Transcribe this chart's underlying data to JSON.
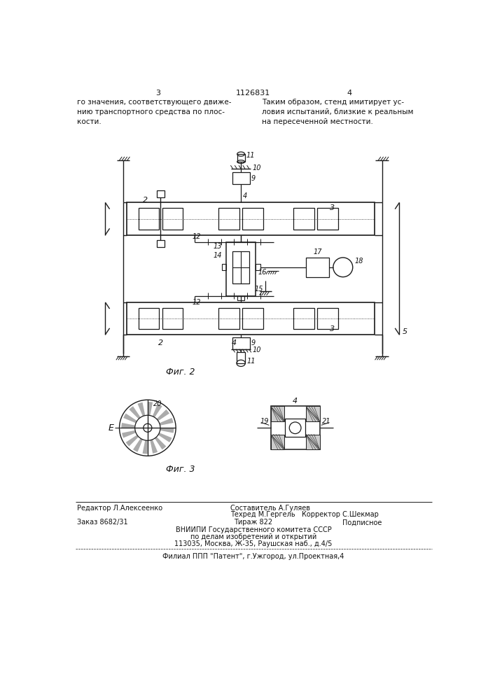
{
  "page_number_left": "3",
  "page_number_center": "1126831",
  "page_number_right": "4",
  "text_left": "го значения, соответствующего движе-\nнию транспортного средства по плос-\nкости.",
  "text_right": "Таким образом, стенд имитирует ус-\nловия испытаний, близкие к реальным\nна пересеченной местности.",
  "fig2_caption": "Фиг. 2",
  "fig3_caption": "Фиг. 3",
  "footer_line1": "Редактор Л.Алексеенко",
  "footer_col2_1": "Составитель А.Гуляев",
  "footer_col2_2": "Техред М.Гергель   Корректор С.Шекмар",
  "footer_order": "Заказ 8682/31",
  "footer_tirazh": "Тираж 822",
  "footer_podpisnoe": "Подписное",
  "footer_vniip1": "ВНИИПИ Государственного комитета СССР",
  "footer_vniip2": "по делам изобретений и открытий",
  "footer_vniip3": "113035, Москва, Ж-35, Раушская наб., д.4/5",
  "footer_filial": "Филиал ППП \"Патент\", г.Ужгород, ул.Проектная,4",
  "bg_color": "#ffffff",
  "line_color": "#1a1a1a",
  "text_color": "#111111"
}
